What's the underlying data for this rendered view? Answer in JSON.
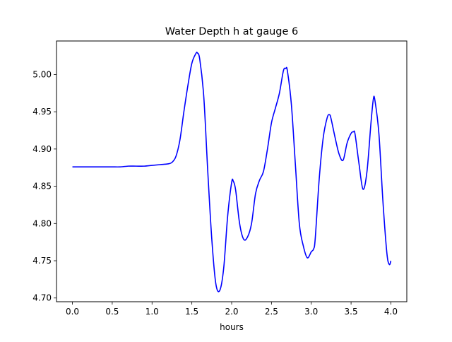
{
  "chart_data": {
    "type": "line",
    "title": "Water Depth h at gauge 6",
    "xlabel": "hours",
    "ylabel": "",
    "xlim": [
      -0.2,
      4.2
    ],
    "ylim": [
      4.695,
      5.045
    ],
    "xticks": [
      0.0,
      0.5,
      1.0,
      1.5,
      2.0,
      2.5,
      3.0,
      3.5,
      4.0
    ],
    "xtick_labels": [
      "0.0",
      "0.5",
      "1.0",
      "1.5",
      "2.0",
      "2.5",
      "3.0",
      "3.5",
      "4.0"
    ],
    "yticks": [
      4.7,
      4.75,
      4.8,
      4.85,
      4.9,
      4.95,
      5.0
    ],
    "ytick_labels": [
      "4.70",
      "4.75",
      "4.80",
      "4.85",
      "4.90",
      "4.95",
      "5.00"
    ],
    "grid": false,
    "legend": "none",
    "series": [
      {
        "color": "#0000ff",
        "x": [
          0.0,
          0.1,
          0.2,
          0.3,
          0.4,
          0.5,
          0.6,
          0.7,
          0.8,
          0.9,
          1.0,
          1.1,
          1.2,
          1.25,
          1.3,
          1.35,
          1.4,
          1.45,
          1.5,
          1.55,
          1.57,
          1.6,
          1.65,
          1.7,
          1.75,
          1.8,
          1.85,
          1.9,
          1.95,
          2.0,
          2.02,
          2.05,
          2.1,
          2.15,
          2.2,
          2.25,
          2.3,
          2.35,
          2.4,
          2.45,
          2.5,
          2.55,
          2.6,
          2.65,
          2.68,
          2.7,
          2.75,
          2.8,
          2.85,
          2.9,
          2.95,
          3.0,
          3.03,
          3.05,
          3.1,
          3.15,
          3.2,
          3.23,
          3.25,
          3.3,
          3.35,
          3.4,
          3.45,
          3.5,
          3.53,
          3.55,
          3.6,
          3.65,
          3.7,
          3.75,
          3.78,
          3.8,
          3.85,
          3.9,
          3.95,
          3.98,
          4.0
        ],
        "y": [
          4.876,
          4.876,
          4.876,
          4.876,
          4.876,
          4.876,
          4.876,
          4.877,
          4.877,
          4.877,
          4.878,
          4.879,
          4.88,
          4.882,
          4.89,
          4.912,
          4.95,
          4.985,
          5.015,
          5.028,
          5.029,
          5.02,
          4.97,
          4.87,
          4.78,
          4.72,
          4.71,
          4.74,
          4.81,
          4.855,
          4.857,
          4.845,
          4.8,
          4.779,
          4.782,
          4.8,
          4.84,
          4.858,
          4.87,
          4.9,
          4.935,
          4.955,
          4.975,
          5.005,
          5.008,
          5.005,
          4.96,
          4.88,
          4.8,
          4.77,
          4.754,
          4.762,
          4.766,
          4.78,
          4.86,
          4.915,
          4.942,
          4.946,
          4.94,
          4.915,
          4.893,
          4.885,
          4.908,
          4.921,
          4.923,
          4.92,
          4.88,
          4.846,
          4.87,
          4.935,
          4.967,
          4.965,
          4.92,
          4.83,
          4.76,
          4.745,
          4.75
        ]
      }
    ]
  }
}
